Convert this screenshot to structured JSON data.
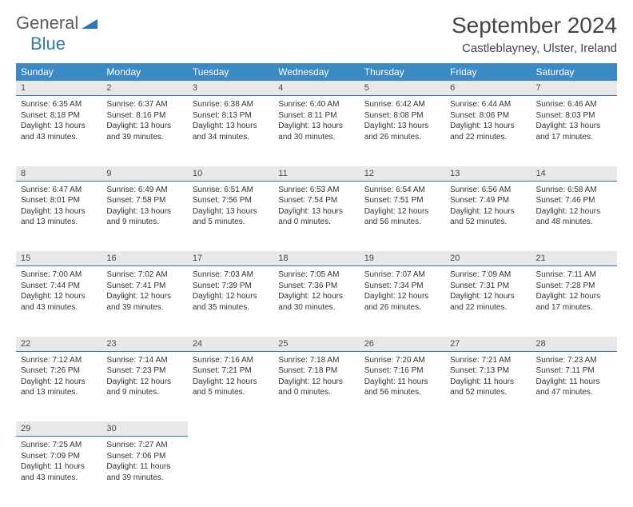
{
  "logo": {
    "text_general": "General",
    "text_blue": "Blue"
  },
  "title": "September 2024",
  "location": "Castleblayney, Ulster, Ireland",
  "colors": {
    "header_bg": "#3b8ac4",
    "header_text": "#ffffff",
    "daynum_bg": "#e8e8e8",
    "border": "#2f77b6",
    "logo_gray": "#5a5a5a",
    "logo_blue": "#2f77b6"
  },
  "days_of_week": [
    "Sunday",
    "Monday",
    "Tuesday",
    "Wednesday",
    "Thursday",
    "Friday",
    "Saturday"
  ],
  "weeks": [
    [
      {
        "n": "1",
        "sr": "6:35 AM",
        "ss": "8:18 PM",
        "dl": "13 hours and 43 minutes."
      },
      {
        "n": "2",
        "sr": "6:37 AM",
        "ss": "8:16 PM",
        "dl": "13 hours and 39 minutes."
      },
      {
        "n": "3",
        "sr": "6:38 AM",
        "ss": "8:13 PM",
        "dl": "13 hours and 34 minutes."
      },
      {
        "n": "4",
        "sr": "6:40 AM",
        "ss": "8:11 PM",
        "dl": "13 hours and 30 minutes."
      },
      {
        "n": "5",
        "sr": "6:42 AM",
        "ss": "8:08 PM",
        "dl": "13 hours and 26 minutes."
      },
      {
        "n": "6",
        "sr": "6:44 AM",
        "ss": "8:06 PM",
        "dl": "13 hours and 22 minutes."
      },
      {
        "n": "7",
        "sr": "6:46 AM",
        "ss": "8:03 PM",
        "dl": "13 hours and 17 minutes."
      }
    ],
    [
      {
        "n": "8",
        "sr": "6:47 AM",
        "ss": "8:01 PM",
        "dl": "13 hours and 13 minutes."
      },
      {
        "n": "9",
        "sr": "6:49 AM",
        "ss": "7:58 PM",
        "dl": "13 hours and 9 minutes."
      },
      {
        "n": "10",
        "sr": "6:51 AM",
        "ss": "7:56 PM",
        "dl": "13 hours and 5 minutes."
      },
      {
        "n": "11",
        "sr": "6:53 AM",
        "ss": "7:54 PM",
        "dl": "13 hours and 0 minutes."
      },
      {
        "n": "12",
        "sr": "6:54 AM",
        "ss": "7:51 PM",
        "dl": "12 hours and 56 minutes."
      },
      {
        "n": "13",
        "sr": "6:56 AM",
        "ss": "7:49 PM",
        "dl": "12 hours and 52 minutes."
      },
      {
        "n": "14",
        "sr": "6:58 AM",
        "ss": "7:46 PM",
        "dl": "12 hours and 48 minutes."
      }
    ],
    [
      {
        "n": "15",
        "sr": "7:00 AM",
        "ss": "7:44 PM",
        "dl": "12 hours and 43 minutes."
      },
      {
        "n": "16",
        "sr": "7:02 AM",
        "ss": "7:41 PM",
        "dl": "12 hours and 39 minutes."
      },
      {
        "n": "17",
        "sr": "7:03 AM",
        "ss": "7:39 PM",
        "dl": "12 hours and 35 minutes."
      },
      {
        "n": "18",
        "sr": "7:05 AM",
        "ss": "7:36 PM",
        "dl": "12 hours and 30 minutes."
      },
      {
        "n": "19",
        "sr": "7:07 AM",
        "ss": "7:34 PM",
        "dl": "12 hours and 26 minutes."
      },
      {
        "n": "20",
        "sr": "7:09 AM",
        "ss": "7:31 PM",
        "dl": "12 hours and 22 minutes."
      },
      {
        "n": "21",
        "sr": "7:11 AM",
        "ss": "7:28 PM",
        "dl": "12 hours and 17 minutes."
      }
    ],
    [
      {
        "n": "22",
        "sr": "7:12 AM",
        "ss": "7:26 PM",
        "dl": "12 hours and 13 minutes."
      },
      {
        "n": "23",
        "sr": "7:14 AM",
        "ss": "7:23 PM",
        "dl": "12 hours and 9 minutes."
      },
      {
        "n": "24",
        "sr": "7:16 AM",
        "ss": "7:21 PM",
        "dl": "12 hours and 5 minutes."
      },
      {
        "n": "25",
        "sr": "7:18 AM",
        "ss": "7:18 PM",
        "dl": "12 hours and 0 minutes."
      },
      {
        "n": "26",
        "sr": "7:20 AM",
        "ss": "7:16 PM",
        "dl": "11 hours and 56 minutes."
      },
      {
        "n": "27",
        "sr": "7:21 AM",
        "ss": "7:13 PM",
        "dl": "11 hours and 52 minutes."
      },
      {
        "n": "28",
        "sr": "7:23 AM",
        "ss": "7:11 PM",
        "dl": "11 hours and 47 minutes."
      }
    ],
    [
      {
        "n": "29",
        "sr": "7:25 AM",
        "ss": "7:09 PM",
        "dl": "11 hours and 43 minutes."
      },
      {
        "n": "30",
        "sr": "7:27 AM",
        "ss": "7:06 PM",
        "dl": "11 hours and 39 minutes."
      },
      null,
      null,
      null,
      null,
      null
    ]
  ],
  "labels": {
    "sunrise": "Sunrise:",
    "sunset": "Sunset:",
    "daylight": "Daylight:"
  }
}
